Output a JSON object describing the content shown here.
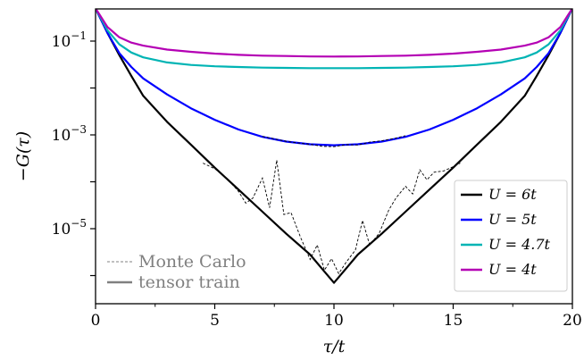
{
  "chart_data": {
    "type": "line",
    "title": "",
    "xlabel": "τ/t",
    "ylabel": "−G(τ)",
    "x_scale": "linear",
    "y_scale": "log",
    "xlim": [
      0,
      20
    ],
    "ylim": [
      3e-07,
      0.5
    ],
    "x_ticks": [
      0,
      5,
      10,
      15,
      20
    ],
    "x_tick_labels": [
      "0",
      "5",
      "10",
      "15",
      "20"
    ],
    "y_ticks": [
      0.1,
      0.001,
      1e-05
    ],
    "y_tick_labels": [
      {
        "base": "10",
        "exp": "−1"
      },
      {
        "base": "10",
        "exp": "−3"
      },
      {
        "base": "10",
        "exp": "−5"
      }
    ],
    "grid": false,
    "legend_position": "bottom-right",
    "method_legend_position": "bottom-left",
    "series": [
      {
        "name": "U = 6t",
        "color": "#000000",
        "tensor_train": [
          [
            0,
            0.5
          ],
          [
            0.5,
            0.15
          ],
          [
            1,
            0.05
          ],
          [
            1.5,
            0.018
          ],
          [
            2,
            0.0068
          ],
          [
            3,
            0.0019
          ],
          [
            4,
            0.00062
          ],
          [
            5,
            0.0002
          ],
          [
            6,
            6.8e-05
          ],
          [
            7,
            2.3e-05
          ],
          [
            8,
            7.8e-06
          ],
          [
            9,
            2.8e-06
          ],
          [
            9.5,
            1.4e-06
          ],
          [
            10,
            7e-07
          ],
          [
            10.5,
            1.4e-06
          ],
          [
            11,
            2.8e-06
          ],
          [
            12,
            7.8e-06
          ],
          [
            13,
            2.3e-05
          ],
          [
            14,
            6.8e-05
          ],
          [
            15,
            0.0002
          ],
          [
            16,
            0.00062
          ],
          [
            17,
            0.0019
          ],
          [
            18,
            0.0068
          ],
          [
            18.5,
            0.018
          ],
          [
            19,
            0.05
          ],
          [
            19.5,
            0.15
          ],
          [
            20,
            0.5
          ]
        ],
        "monte_carlo": [
          [
            4.5,
            0.00025
          ],
          [
            5,
            0.00019
          ],
          [
            5.5,
            0.00012
          ],
          [
            6,
            6.2e-05
          ],
          [
            6.3,
            3.5e-05
          ],
          [
            6.6,
            4.5e-05
          ],
          [
            7,
            0.00012
          ],
          [
            7.3,
            2.8e-05
          ],
          [
            7.6,
            0.00029
          ],
          [
            7.9,
            2e-05
          ],
          [
            8.2,
            2.2e-05
          ],
          [
            8.6,
            6.5e-06
          ],
          [
            9,
            2.2e-06
          ],
          [
            9.3,
            4.5e-06
          ],
          [
            9.6,
            1.3e-06
          ],
          [
            9.9,
            2.3e-06
          ],
          [
            10.2,
            1.1e-06
          ],
          [
            10.5,
            1.9e-06
          ],
          [
            10.9,
            3.5e-06
          ],
          [
            11.2,
            1.5e-05
          ],
          [
            11.5,
            4.5e-06
          ],
          [
            11.9,
            8e-06
          ],
          [
            12.3,
            2.5e-05
          ],
          [
            12.6,
            4.5e-05
          ],
          [
            13,
            8e-05
          ],
          [
            13.3,
            5.5e-05
          ],
          [
            13.6,
            0.00018
          ],
          [
            13.9,
            0.00011
          ],
          [
            14.2,
            0.00016
          ],
          [
            14.6,
            0.00017
          ],
          [
            15,
            0.00021
          ],
          [
            15.3,
            0.00025
          ]
        ]
      },
      {
        "name": "U = 5t",
        "color": "#0000ff",
        "tensor_train": [
          [
            0,
            0.5
          ],
          [
            0.5,
            0.15
          ],
          [
            1,
            0.055
          ],
          [
            1.5,
            0.028
          ],
          [
            2,
            0.016
          ],
          [
            3,
            0.0073
          ],
          [
            4,
            0.0037
          ],
          [
            5,
            0.0021
          ],
          [
            6,
            0.0013
          ],
          [
            7,
            0.00091
          ],
          [
            8,
            0.00072
          ],
          [
            9,
            0.00063
          ],
          [
            10,
            0.0006
          ],
          [
            11,
            0.00063
          ],
          [
            12,
            0.00072
          ],
          [
            13,
            0.00091
          ],
          [
            14,
            0.0013
          ],
          [
            15,
            0.0021
          ],
          [
            16,
            0.0037
          ],
          [
            17,
            0.0073
          ],
          [
            18,
            0.016
          ],
          [
            18.5,
            0.028
          ],
          [
            19,
            0.055
          ],
          [
            19.5,
            0.15
          ],
          [
            20,
            0.5
          ]
        ],
        "monte_carlo": [
          [
            7,
            0.00093
          ],
          [
            7.5,
            0.00082
          ],
          [
            8,
            0.00073
          ],
          [
            8.5,
            0.00067
          ],
          [
            9,
            0.00063
          ],
          [
            9.5,
            0.00057
          ],
          [
            10,
            0.00056
          ],
          [
            10.5,
            0.00062
          ],
          [
            11,
            0.00061
          ],
          [
            11.5,
            0.0007
          ],
          [
            12,
            0.00075
          ],
          [
            12.5,
            0.00083
          ],
          [
            13,
            0.00096
          ]
        ]
      },
      {
        "name": "U = 4.7t",
        "color": "#00b4b4",
        "tensor_train": [
          [
            0,
            0.5
          ],
          [
            0.5,
            0.17
          ],
          [
            1,
            0.085
          ],
          [
            1.5,
            0.057
          ],
          [
            2,
            0.045
          ],
          [
            3,
            0.035
          ],
          [
            4,
            0.031
          ],
          [
            5,
            0.029
          ],
          [
            6,
            0.028
          ],
          [
            7,
            0.0272
          ],
          [
            8,
            0.0268
          ],
          [
            9,
            0.0265
          ],
          [
            10,
            0.0265
          ],
          [
            11,
            0.0265
          ],
          [
            12,
            0.0268
          ],
          [
            13,
            0.0272
          ],
          [
            14,
            0.028
          ],
          [
            15,
            0.029
          ],
          [
            16,
            0.031
          ],
          [
            17,
            0.035
          ],
          [
            18,
            0.045
          ],
          [
            18.5,
            0.057
          ],
          [
            19,
            0.085
          ],
          [
            19.5,
            0.17
          ],
          [
            20,
            0.5
          ]
        ],
        "monte_carlo": []
      },
      {
        "name": "U = 4t",
        "color": "#b400b4",
        "tensor_train": [
          [
            0,
            0.5
          ],
          [
            0.5,
            0.2
          ],
          [
            1,
            0.12
          ],
          [
            1.5,
            0.093
          ],
          [
            2,
            0.08
          ],
          [
            3,
            0.066
          ],
          [
            4,
            0.059
          ],
          [
            5,
            0.054
          ],
          [
            6,
            0.051
          ],
          [
            7,
            0.049
          ],
          [
            8,
            0.048
          ],
          [
            9,
            0.047
          ],
          [
            10,
            0.0468
          ],
          [
            11,
            0.047
          ],
          [
            12,
            0.048
          ],
          [
            13,
            0.049
          ],
          [
            14,
            0.051
          ],
          [
            15,
            0.054
          ],
          [
            16,
            0.059
          ],
          [
            17,
            0.066
          ],
          [
            18,
            0.08
          ],
          [
            18.5,
            0.093
          ],
          [
            19,
            0.12
          ],
          [
            19.5,
            0.2
          ],
          [
            20,
            0.5
          ]
        ],
        "monte_carlo": []
      }
    ],
    "method_legend": [
      {
        "label": "Monte Carlo",
        "style": "dashed",
        "color": "#808080"
      },
      {
        "label": "tensor train",
        "style": "solid",
        "color": "#808080"
      }
    ]
  }
}
